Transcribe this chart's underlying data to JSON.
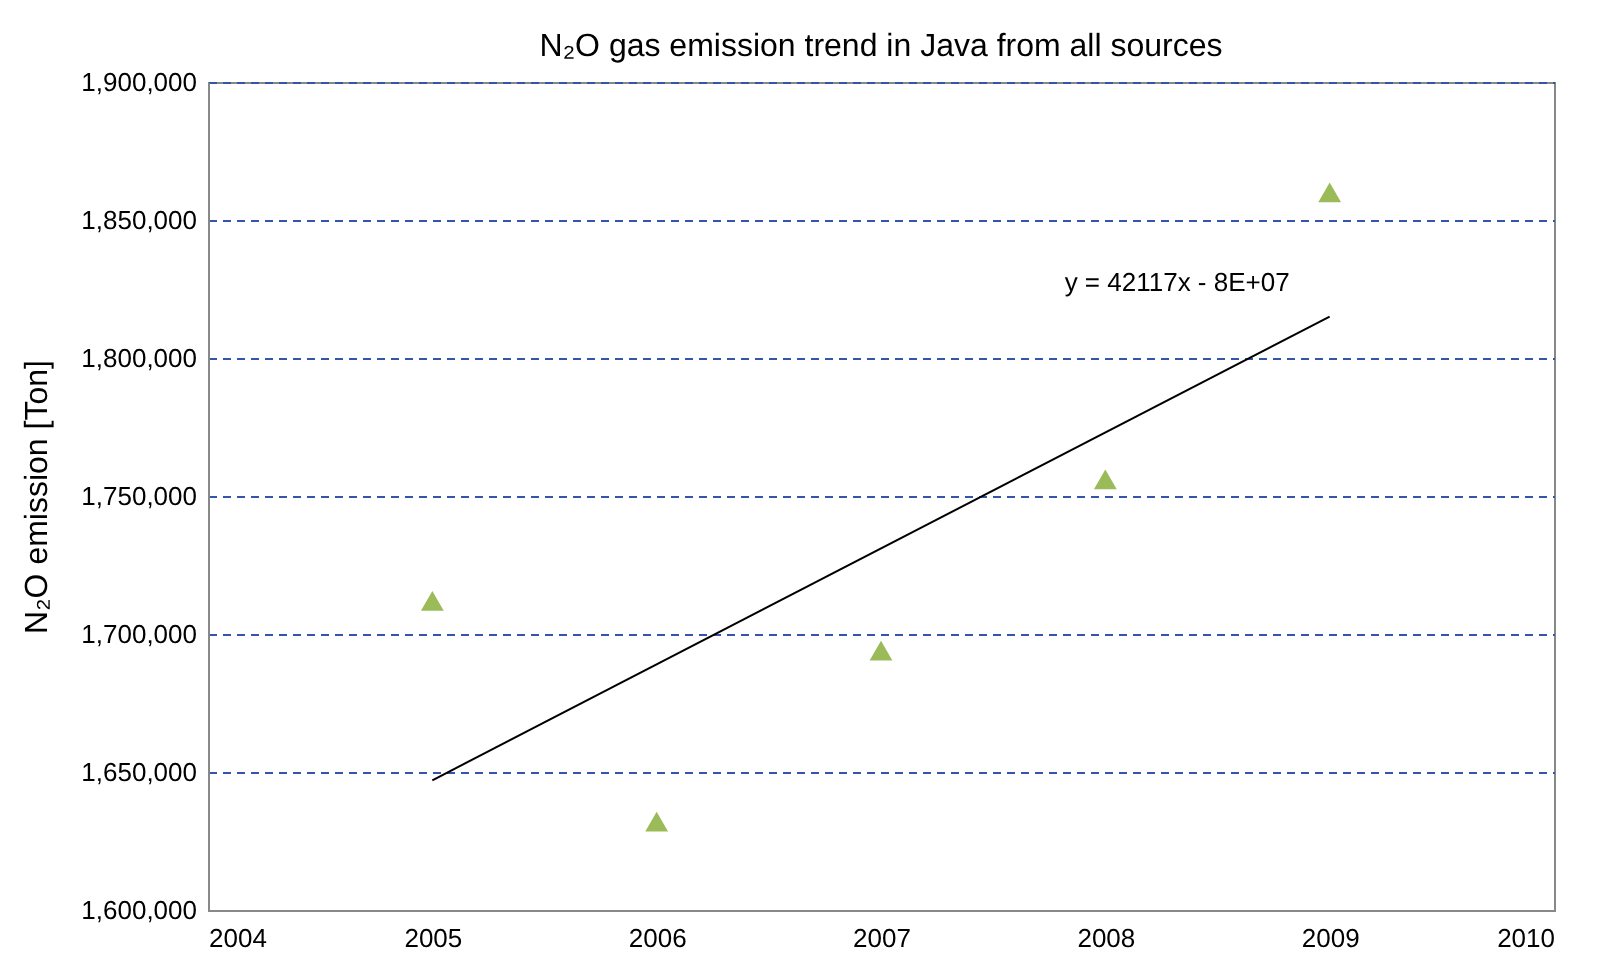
{
  "chart_data": {
    "type": "scatter",
    "title": "N₂O gas emission trend in Java from all sources",
    "ylabel": "N₂O  emission [Ton]",
    "x": [
      2005,
      2006,
      2007,
      2008,
      2009
    ],
    "series": [
      {
        "type": "scatter",
        "color": "#9bbb59",
        "marker": "triangle",
        "values": [
          1712000,
          1632000,
          1694000,
          1756000,
          1860000
        ]
      },
      {
        "type": "line",
        "color": "#000000",
        "x": [
          2005,
          2009
        ],
        "values": [
          1647000,
          1815000
        ]
      }
    ],
    "annotations": [
      "y = 42117x - 8E+07"
    ],
    "xlim": [
      2004,
      2010
    ],
    "xticks": [
      2004,
      2005,
      2006,
      2007,
      2008,
      2009,
      2010
    ],
    "ylim": [
      1600000,
      1900000
    ],
    "yticks": [
      {
        "value": 1600000,
        "label": "1,600,000"
      },
      {
        "value": 1650000,
        "label": "1,650,000"
      },
      {
        "value": 1700000,
        "label": "1,700,000"
      },
      {
        "value": 1750000,
        "label": "1,750,000"
      },
      {
        "value": 1800000,
        "label": "1,800,000"
      },
      {
        "value": 1850000,
        "label": "1,850,000"
      },
      {
        "value": 1900000,
        "label": "1,900,000"
      }
    ],
    "grid": "y"
  }
}
